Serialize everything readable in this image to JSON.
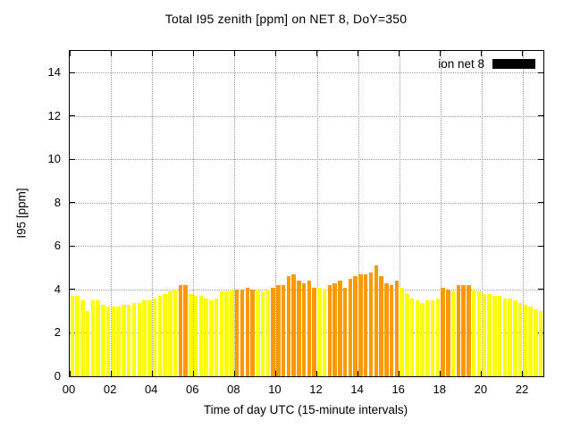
{
  "chart_data": {
    "type": "bar",
    "title": "Total I95 zenith [ppm] on NET 8, DoY=350",
    "xlabel": "Time of day UTC (15-minute intervals)",
    "ylabel": "I95 [ppm]",
    "ylim": [
      0,
      15
    ],
    "xlim_hours": [
      0,
      23
    ],
    "yticks": [
      0,
      2,
      4,
      6,
      8,
      10,
      12,
      14
    ],
    "xtick_hours": [
      0,
      2,
      4,
      6,
      8,
      10,
      12,
      14,
      16,
      18,
      20,
      22
    ],
    "xtick_labels": [
      "00",
      "02",
      "04",
      "06",
      "08",
      "10",
      "12",
      "14",
      "16",
      "18",
      "20",
      "22"
    ],
    "grid": true,
    "legend": {
      "label": "ion net 8",
      "swatch_color": "#000000",
      "position": "top-right"
    },
    "colors": {
      "yellow": "#ffff00",
      "orange": "#ff9900",
      "grid": "#9a9a9a",
      "axis": "#000000"
    },
    "interval_minutes": 15,
    "start_time": "00:00",
    "values": [
      3.7,
      3.7,
      3.5,
      3.0,
      3.5,
      3.5,
      3.3,
      3.2,
      3.2,
      3.2,
      3.3,
      3.3,
      3.4,
      3.4,
      3.5,
      3.5,
      3.6,
      3.7,
      3.8,
      3.9,
      4.0,
      4.2,
      4.2,
      3.8,
      3.7,
      3.7,
      3.6,
      3.5,
      3.6,
      3.9,
      3.9,
      4.0,
      4.0,
      4.0,
      4.1,
      4.0,
      4.0,
      3.9,
      4.0,
      4.1,
      4.2,
      4.2,
      4.6,
      4.7,
      4.4,
      4.3,
      4.4,
      4.1,
      4.1,
      4.0,
      4.2,
      4.3,
      4.4,
      4.1,
      4.5,
      4.6,
      4.7,
      4.7,
      4.8,
      5.1,
      4.6,
      4.3,
      4.2,
      4.4,
      4.1,
      3.8,
      3.6,
      3.5,
      3.4,
      3.5,
      3.5,
      3.6,
      4.1,
      4.0,
      3.9,
      4.2,
      4.2,
      4.2,
      4.0,
      3.9,
      3.8,
      3.8,
      3.7,
      3.7,
      3.6,
      3.6,
      3.5,
      3.4,
      3.3,
      3.2,
      3.1,
      3.0
    ],
    "bar_color_flags": [
      "y",
      "y",
      "y",
      "y",
      "y",
      "y",
      "y",
      "y",
      "y",
      "y",
      "y",
      "y",
      "y",
      "y",
      "y",
      "y",
      "y",
      "y",
      "y",
      "y",
      "y",
      "o",
      "o",
      "y",
      "y",
      "y",
      "y",
      "y",
      "y",
      "y",
      "y",
      "y",
      "o",
      "o",
      "o",
      "o",
      "y",
      "y",
      "y",
      "o",
      "o",
      "o",
      "o",
      "o",
      "o",
      "o",
      "o",
      "o",
      "y",
      "y",
      "o",
      "o",
      "o",
      "o",
      "o",
      "o",
      "o",
      "o",
      "o",
      "o",
      "o",
      "o",
      "o",
      "o",
      "y",
      "y",
      "y",
      "y",
      "y",
      "y",
      "y",
      "y",
      "o",
      "o",
      "y",
      "o",
      "o",
      "o",
      "y",
      "y",
      "y",
      "y",
      "y",
      "y",
      "y",
      "y",
      "y",
      "y",
      "y",
      "y",
      "y",
      "y"
    ]
  }
}
